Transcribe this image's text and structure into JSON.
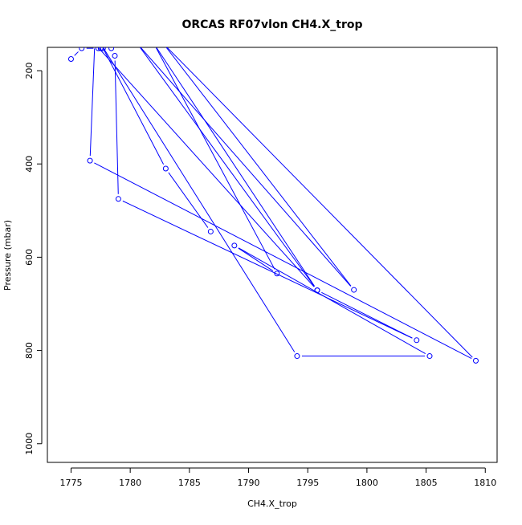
{
  "chart_data": {
    "type": "line",
    "title": "ORCAS RF07vlon CH4.X_trop",
    "xlabel": "CH4.X_trop",
    "ylabel": "Pressure (mbar)",
    "xlim": [
      1773.0,
      1811.0
    ],
    "ylim": [
      1040,
      150
    ],
    "y_reversed": true,
    "x_ticks": [
      1775,
      1780,
      1785,
      1790,
      1795,
      1800,
      1805,
      1810
    ],
    "y_ticks": [
      200,
      400,
      600,
      800,
      1000
    ],
    "grid": false,
    "legend": "none",
    "color": "#0000ff",
    "series": [
      {
        "marker": "open-circle",
        "points": [
          {
            "x": 1775.0,
            "y": 175
          },
          {
            "x": 1775.9,
            "y": 152
          },
          {
            "x": 1777.3,
            "y": 152
          },
          {
            "x": 1777.5,
            "y": 152
          },
          {
            "x": 1777.7,
            "y": 152
          },
          {
            "x": 1778.4,
            "y": 152
          },
          {
            "x": 1778.7,
            "y": 168
          },
          {
            "x": 1779.0,
            "y": 475
          },
          {
            "x": 1804.2,
            "y": 778
          },
          {
            "x": 1795.8,
            "y": 671
          },
          {
            "x": 1777.0,
            "y": 142
          },
          {
            "x": 1776.6,
            "y": 393
          },
          {
            "x": 1809.2,
            "y": 822
          },
          {
            "x": 1782.8,
            "y": 142
          },
          {
            "x": 1798.9,
            "y": 670
          },
          {
            "x": 1780.6,
            "y": 142
          },
          {
            "x": 1795.8,
            "y": 671
          },
          {
            "x": 1782.0,
            "y": 142
          },
          {
            "x": 1792.4,
            "y": 635
          },
          {
            "x": 1788.8,
            "y": 575
          },
          {
            "x": 1805.3,
            "y": 812
          },
          {
            "x": 1794.1,
            "y": 812
          },
          {
            "x": 1777.5,
            "y": 142
          },
          {
            "x": 1783.0,
            "y": 410
          },
          {
            "x": 1786.8,
            "y": 545
          }
        ]
      }
    ]
  }
}
